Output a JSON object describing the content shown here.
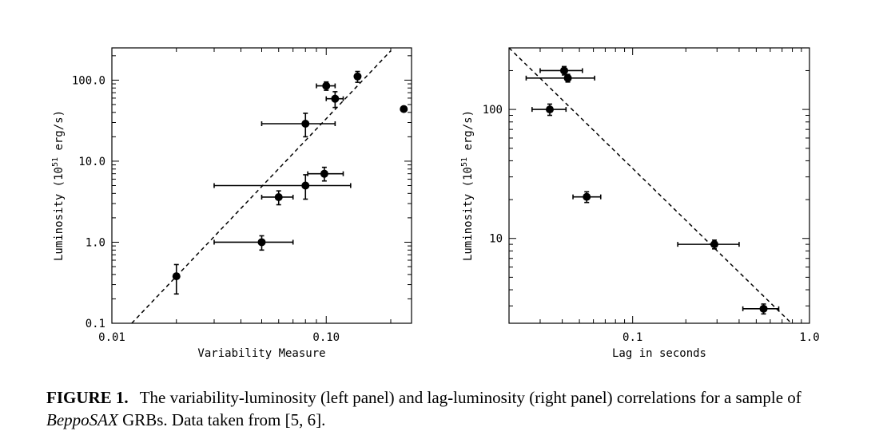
{
  "chart_data": [
    {
      "type": "scatter",
      "panel": "left",
      "xscale": "log",
      "yscale": "log",
      "xlim": [
        0.01,
        0.25
      ],
      "ylim": [
        0.1,
        250
      ],
      "xlabel": "Variability Measure",
      "ylabel": "Luminosity (10",
      "ylabel_sup": "51",
      "ylabel_unit": " erg/s)",
      "xticks": [
        {
          "value": 0.01,
          "label": "0.01"
        },
        {
          "value": 0.1,
          "label": "0.10"
        }
      ],
      "yticks": [
        {
          "value": 0.1,
          "label": "0.1"
        },
        {
          "value": 1,
          "label": "1.0"
        },
        {
          "value": 10,
          "label": "10.0"
        },
        {
          "value": 100,
          "label": "100.0"
        }
      ],
      "points": [
        {
          "x": 0.02,
          "y": 0.38,
          "xerr": [
            0.02,
            0.02
          ],
          "yerr": [
            0.23,
            0.53
          ]
        },
        {
          "x": 0.05,
          "y": 1.0,
          "xerr": [
            0.03,
            0.07
          ],
          "yerr": [
            0.8,
            1.2
          ]
        },
        {
          "x": 0.06,
          "y": 3.6,
          "xerr": [
            0.05,
            0.07
          ],
          "yerr": [
            2.9,
            4.3
          ]
        },
        {
          "x": 0.08,
          "y": 5.0,
          "xerr": [
            0.03,
            0.13
          ],
          "yerr": [
            3.4,
            6.8
          ]
        },
        {
          "x": 0.098,
          "y": 7.0,
          "xerr": [
            0.082,
            0.12
          ],
          "yerr": [
            5.7,
            8.4
          ]
        },
        {
          "x": 0.08,
          "y": 29,
          "xerr": [
            0.05,
            0.11
          ],
          "yerr": [
            20,
            39
          ]
        },
        {
          "x": 0.1,
          "y": 85,
          "xerr": [
            0.09,
            0.11
          ],
          "yerr": [
            75,
            95
          ]
        },
        {
          "x": 0.11,
          "y": 59,
          "xerr": [
            0.1,
            0.12
          ],
          "yerr": [
            46,
            72
          ]
        },
        {
          "x": 0.14,
          "y": 111,
          "xerr": [
            0.14,
            0.14
          ],
          "yerr": [
            94,
            128
          ]
        },
        {
          "x": 0.23,
          "y": 44,
          "xerr": [
            0.23,
            0.23
          ],
          "yerr": [
            44,
            44
          ]
        }
      ],
      "fit_line": {
        "x": [
          0.01238,
          0.2
        ],
        "y": [
          0.1,
          230
        ]
      }
    },
    {
      "type": "scatter",
      "panel": "right",
      "xscale": "log",
      "yscale": "log",
      "xlim": [
        0.02,
        1.0
      ],
      "ylim": [
        2.2,
        300
      ],
      "xlabel": "Lag in seconds",
      "ylabel": "Luminosity (10",
      "ylabel_sup": "51",
      "ylabel_unit": " erg/s)",
      "xticks": [
        {
          "value": 0.1,
          "label": "0.1"
        },
        {
          "value": 1.0,
          "label": "1.0"
        }
      ],
      "yticks": [
        {
          "value": 10,
          "label": "10"
        },
        {
          "value": 100,
          "label": "100"
        }
      ],
      "points": [
        {
          "x": 0.041,
          "y": 200,
          "xerr": [
            0.03,
            0.052
          ],
          "yerr": [
            185,
            215
          ]
        },
        {
          "x": 0.043,
          "y": 175,
          "xerr": [
            0.025,
            0.061
          ],
          "yerr": [
            163,
            187
          ]
        },
        {
          "x": 0.034,
          "y": 100,
          "xerr": [
            0.027,
            0.042
          ],
          "yerr": [
            90,
            110
          ]
        },
        {
          "x": 0.055,
          "y": 21,
          "xerr": [
            0.046,
            0.066
          ],
          "yerr": [
            19,
            23
          ]
        },
        {
          "x": 0.29,
          "y": 9.0,
          "xerr": [
            0.18,
            0.4
          ],
          "yerr": [
            8.3,
            9.7
          ]
        },
        {
          "x": 0.55,
          "y": 2.85,
          "xerr": [
            0.42,
            0.67
          ],
          "yerr": [
            2.6,
            3.1
          ]
        }
      ],
      "fit_line": {
        "x": [
          0.02,
          0.79
        ],
        "y": [
          300,
          2.2
        ]
      }
    }
  ],
  "caption": {
    "label": "FIGURE 1.",
    "text_a": "The variability-luminosity (left panel) and lag-luminosity (right panel) correlations for a sample of ",
    "text_italic": "BeppoSAX",
    "text_b": " GRBs. Data taken from [5, 6]."
  }
}
